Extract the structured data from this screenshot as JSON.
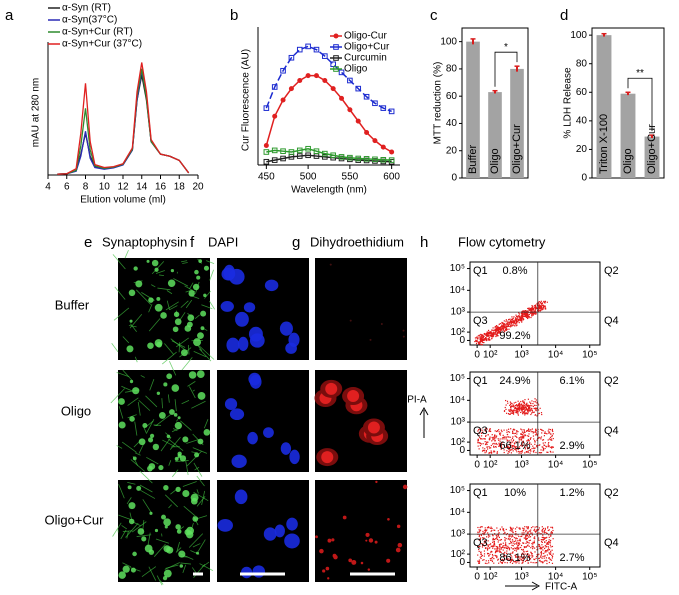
{
  "chart_data": [
    {
      "type": "line",
      "label": "a",
      "x_label": "Elution volume (ml)",
      "y_label": "mAU at 280 nm",
      "x": [
        5,
        6,
        7,
        7.5,
        8,
        8.5,
        9,
        10,
        11,
        12,
        13,
        13.5,
        14,
        14.5,
        15,
        16,
        17,
        18,
        19
      ],
      "xlim": [
        4,
        20
      ],
      "xticks": [
        4,
        6,
        8,
        10,
        12,
        14,
        16,
        18,
        20
      ],
      "ylim": [
        0,
        30
      ],
      "series": [
        {
          "name": "α-Syn (RT)",
          "color": "#222222",
          "values": [
            0.2,
            0.3,
            1,
            5,
            10,
            4.5,
            2,
            1.5,
            1.8,
            2.5,
            6,
            18,
            24,
            18,
            8,
            5,
            4.5,
            3.5,
            0.5
          ]
        },
        {
          "name": "α-Syn(37°C)",
          "color": "#2b2bb5",
          "values": [
            0.2,
            0.3,
            0.9,
            4.5,
            10.5,
            4,
            1.8,
            1.4,
            1.7,
            2.4,
            6,
            18,
            25,
            19,
            8,
            5,
            4.5,
            3.5,
            0.5
          ]
        },
        {
          "name": "α-Syn+Cur (RT)",
          "color": "#2e8b2e",
          "values": [
            0.2,
            0.3,
            1.1,
            7,
            16,
            6,
            2.2,
            1.6,
            1.9,
            2.6,
            6.2,
            19,
            25.5,
            18.5,
            8,
            5,
            4.5,
            3.5,
            0.5
          ]
        },
        {
          "name": "α-Syn+Cur (37°C)",
          "color": "#e02020",
          "values": [
            0.2,
            0.3,
            1.5,
            10,
            22,
            8,
            2.5,
            1.8,
            2,
            2.7,
            6.5,
            20,
            27,
            20,
            8.5,
            5,
            4.5,
            3.5,
            0.5
          ]
        }
      ]
    },
    {
      "type": "line",
      "label": "b",
      "x_label": "Wavelength (nm)",
      "y_label": "Cur Fluorescence (AU)",
      "x": [
        450,
        460,
        470,
        480,
        490,
        500,
        510,
        520,
        530,
        540,
        550,
        560,
        570,
        580,
        590,
        600
      ],
      "xlim": [
        440,
        610
      ],
      "xticks": [
        450,
        500,
        550,
        600
      ],
      "ylim": [
        0,
        800
      ],
      "series": [
        {
          "name": "Oligo-Cur",
          "color": "#e02020",
          "marker": "circle",
          "values": [
            120,
            300,
            400,
            470,
            520,
            550,
            550,
            520,
            470,
            410,
            340,
            270,
            200,
            150,
            110,
            80
          ]
        },
        {
          "name": "Oligo+Cur",
          "color": "#1c2bd0",
          "marker": "square",
          "dash": true,
          "values": [
            350,
            480,
            580,
            660,
            710,
            730,
            710,
            670,
            620,
            570,
            520,
            470,
            420,
            380,
            350,
            330
          ]
        },
        {
          "name": "Curcumin",
          "color": "#222222",
          "marker": "square",
          "values": [
            20,
            30,
            40,
            50,
            55,
            60,
            55,
            50,
            45,
            40,
            35,
            30,
            28,
            25,
            22,
            20
          ]
        },
        {
          "name": "Oligo",
          "color": "#2e9a2e",
          "marker": "square",
          "values": [
            80,
            90,
            85,
            80,
            90,
            100,
            85,
            70,
            60,
            50,
            45,
            40,
            38,
            35,
            32,
            30
          ]
        }
      ]
    },
    {
      "type": "bar",
      "label": "c",
      "y_label": "MTT reduction (%)",
      "annotation": "*",
      "categories": [
        "Buffer",
        "Oligo",
        "Oligo+Cur"
      ],
      "values": [
        100,
        63,
        80
      ],
      "errors": [
        2,
        1,
        2
      ],
      "color": "#a3a3a3",
      "label_color": "#d81e1e",
      "ylim": [
        0,
        110
      ],
      "yticks": [
        0,
        20,
        40,
        60,
        80,
        100
      ]
    },
    {
      "type": "bar",
      "label": "d",
      "y_label": "% LDH Release",
      "annotation": "**",
      "categories": [
        "Triton X-100",
        "Oligo",
        "Oligo+Cur"
      ],
      "values": [
        100,
        59,
        29
      ],
      "errors": [
        1,
        1,
        1
      ],
      "color": "#a3a3a3",
      "label_color": "#d81e1e",
      "ylim": [
        0,
        105
      ],
      "yticks": [
        0,
        20,
        40,
        60,
        80,
        100
      ]
    },
    {
      "type": "flow",
      "scale": "biexponential",
      "xlim": [
        -50,
        200000
      ],
      "ylim": [
        -50,
        200000
      ],
      "gates": [
        3000,
        1000
      ],
      "xticks": [
        0,
        {
          "value": 100,
          "label": "10²"
        },
        {
          "value": 1000,
          "label": "10³"
        },
        {
          "value": 10000,
          "label": "10⁴"
        },
        {
          "value": 100000,
          "label": "10⁵"
        }
      ],
      "yticks": [
        0,
        {
          "value": 100,
          "label": "10²"
        },
        {
          "value": 1000,
          "label": "10³"
        },
        {
          "value": 10000,
          "label": "10⁴"
        },
        {
          "value": 100000,
          "label": "10⁵"
        }
      ],
      "quadrants": [
        {
          "name": "Q1",
          "percent": "0.8%"
        },
        {
          "name": "Q2"
        },
        {
          "name": "Q3",
          "percent": "99.2%"
        },
        {
          "name": "Q4"
        }
      ]
    },
    {
      "type": "flow",
      "scale": "biexponential",
      "xlim": [
        -50,
        200000
      ],
      "ylim": [
        -50,
        200000
      ],
      "gates": [
        3000,
        1000
      ],
      "xticks": [
        0,
        {
          "value": 100,
          "label": "10²"
        },
        {
          "value": 1000,
          "label": "10³"
        },
        {
          "value": 10000,
          "label": "10⁴"
        },
        {
          "value": 100000,
          "label": "10⁵"
        }
      ],
      "yticks": [
        0,
        {
          "value": 100,
          "label": "10²"
        },
        {
          "value": 1000,
          "label": "10³"
        },
        {
          "value": 10000,
          "label": "10⁴"
        },
        {
          "value": 100000,
          "label": "10⁵"
        }
      ],
      "quadrants": [
        {
          "name": "Q1",
          "percent": "24.9%"
        },
        {
          "name": "Q2",
          "percent": "6.1%"
        },
        {
          "name": "Q3",
          "percent": "66.1%"
        },
        {
          "name": "Q4",
          "percent": "2.9%"
        }
      ]
    },
    {
      "type": "flow",
      "scale": "biexponential",
      "xlim": [
        -50,
        200000
      ],
      "ylim": [
        -50,
        200000
      ],
      "gates": [
        3000,
        1000
      ],
      "xticks": [
        0,
        {
          "value": 100,
          "label": "10²"
        },
        {
          "value": 1000,
          "label": "10³"
        },
        {
          "value": 10000,
          "label": "10⁴"
        },
        {
          "value": 100000,
          "label": "10⁵"
        }
      ],
      "yticks": [
        0,
        {
          "value": 100,
          "label": "10²"
        },
        {
          "value": 1000,
          "label": "10³"
        },
        {
          "value": 10000,
          "label": "10⁴"
        },
        {
          "value": 100000,
          "label": "10⁵"
        }
      ],
      "quadrants": [
        {
          "name": "Q1",
          "percent": "10%"
        },
        {
          "name": "Q2",
          "percent": "1.2%"
        },
        {
          "name": "Q3",
          "percent": "86.1%"
        },
        {
          "name": "Q4",
          "percent": "2.7%"
        }
      ]
    }
  ],
  "figure": {
    "panels": [
      {
        "label": "e",
        "title": "Synaptophysin"
      },
      {
        "label": "f",
        "title": "DAPI"
      },
      {
        "label": "g",
        "title": "Dihydroethidium"
      },
      {
        "label": "h",
        "title": "Flow cytometry"
      }
    ],
    "rows": [
      "Buffer",
      "Oligo",
      "Oligo+Cur"
    ],
    "flow_y_label": "PI-A",
    "flow_x_label": "FITC-A"
  }
}
